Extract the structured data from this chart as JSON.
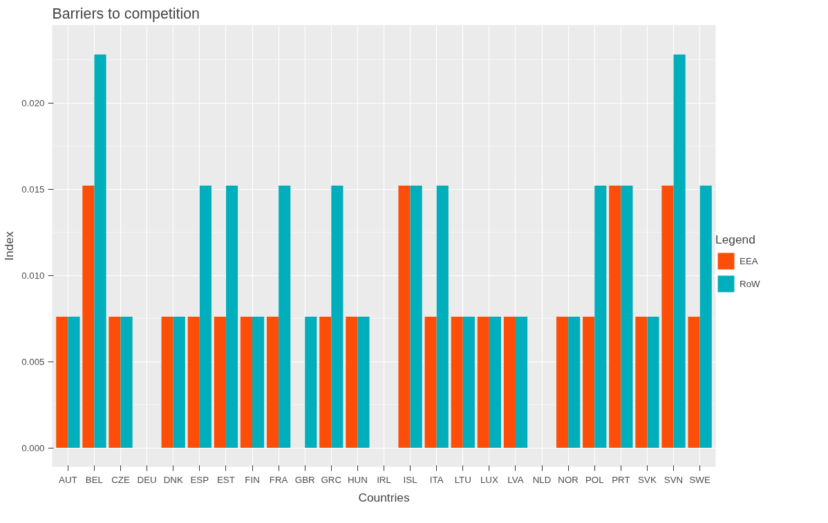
{
  "chart_data": {
    "type": "bar",
    "title": "Barriers to competition",
    "xlabel": "Countries",
    "ylabel": "Index",
    "legend_title": "Legend",
    "categories": [
      "AUT",
      "BEL",
      "CZE",
      "DEU",
      "DNK",
      "ESP",
      "EST",
      "FIN",
      "FRA",
      "GBR",
      "GRC",
      "HUN",
      "IRL",
      "ISL",
      "ITA",
      "LTU",
      "LUX",
      "LVA",
      "NLD",
      "NOR",
      "POL",
      "PRT",
      "SVK",
      "SVN",
      "SWE"
    ],
    "series": [
      {
        "name": "EEA",
        "color": "#fc4e08",
        "values": [
          0.0076,
          0.0152,
          0.0076,
          0,
          0.0076,
          0.0076,
          0.0076,
          0.0076,
          0.0076,
          0,
          0.0076,
          0.0076,
          0,
          0.0152,
          0.0076,
          0.0076,
          0.0076,
          0.0076,
          0,
          0.0076,
          0.0076,
          0.0152,
          0.0076,
          0.0152,
          0.0076
        ]
      },
      {
        "name": "RoW",
        "color": "#00afbb",
        "values": [
          0.0076,
          0.0228,
          0.0076,
          0,
          0.0076,
          0.0152,
          0.0152,
          0.0076,
          0.0152,
          0.0076,
          0.0152,
          0.0076,
          0,
          0.0152,
          0.0152,
          0.0076,
          0.0076,
          0.0076,
          0,
          0.0076,
          0.0152,
          0.0152,
          0.0076,
          0.0228,
          0.0152
        ]
      }
    ],
    "ylim": [
      -0.0011,
      0.0245
    ],
    "yticks": [
      {
        "value": 0,
        "label": "0.000"
      },
      {
        "value": 0.005,
        "label": "0.005"
      },
      {
        "value": 0.01,
        "label": "0.010"
      },
      {
        "value": 0.015,
        "label": "0.015"
      },
      {
        "value": 0.02,
        "label": "0.020"
      }
    ],
    "grid": true,
    "legend": "right"
  }
}
